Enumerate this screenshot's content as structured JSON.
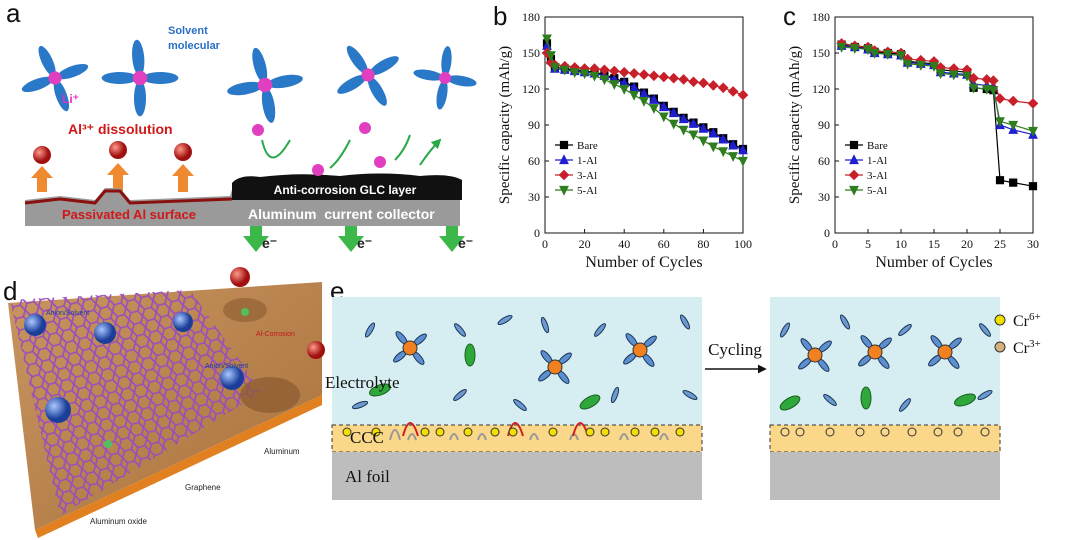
{
  "chart_data": [
    {
      "type": "line",
      "label": "b",
      "xlabel": "Number of Cycles",
      "ylabel": "Specific capacity (mAh/g)",
      "x": [
        1,
        3,
        5,
        10,
        15,
        20,
        25,
        30,
        35,
        40,
        45,
        50,
        55,
        60,
        65,
        70,
        75,
        80,
        85,
        90,
        95,
        100
      ],
      "xlim": [
        0,
        100
      ],
      "xticks": [
        0,
        20,
        40,
        60,
        80,
        100
      ],
      "ylim": [
        0,
        180
      ],
      "yticks": [
        0,
        30,
        60,
        90,
        120,
        150,
        180
      ],
      "legend": "lower left",
      "series": [
        {
          "name": "Bare",
          "color": "#000000",
          "marker": "square",
          "values": [
            158,
            145,
            138,
            137,
            136,
            135,
            134,
            132,
            129,
            126,
            122,
            117,
            112,
            106,
            101,
            96,
            92,
            88,
            84,
            79,
            74,
            70
          ]
        },
        {
          "name": "1-Al",
          "color": "#1f1fd0",
          "marker": "triangle-up",
          "values": [
            156,
            144,
            137,
            136,
            135,
            134,
            133,
            131,
            128,
            125,
            121,
            116,
            111,
            105,
            100,
            95,
            91,
            87,
            83,
            78,
            73,
            69
          ]
        },
        {
          "name": "3-Al",
          "color": "#c8202a",
          "marker": "diamond",
          "values": [
            150,
            142,
            140,
            139,
            138,
            137,
            137,
            136,
            135,
            134,
            133,
            132,
            131,
            130,
            129,
            128,
            126,
            125,
            123,
            121,
            118,
            115
          ]
        },
        {
          "name": "5-Al",
          "color": "#2e7d1e",
          "marker": "triangle-down",
          "values": [
            162,
            148,
            138,
            136,
            134,
            133,
            131,
            128,
            124,
            120,
            115,
            110,
            104,
            97,
            91,
            86,
            82,
            77,
            72,
            68,
            64,
            60
          ]
        }
      ]
    },
    {
      "type": "line",
      "label": "c",
      "xlabel": "Number of Cycles",
      "ylabel": "Specific capacity (mAh/g)",
      "x": [
        1,
        3,
        5,
        6,
        8,
        10,
        11,
        13,
        15,
        16,
        18,
        20,
        21,
        23,
        24,
        25,
        27,
        30
      ],
      "xlim": [
        0,
        30
      ],
      "xticks": [
        0,
        5,
        10,
        15,
        20,
        25,
        30
      ],
      "ylim": [
        0,
        180
      ],
      "yticks": [
        0,
        30,
        60,
        90,
        120,
        150,
        180
      ],
      "legend": "lower left",
      "series": [
        {
          "name": "Bare",
          "color": "#000000",
          "marker": "square",
          "values": [
            157,
            155,
            154,
            151,
            150,
            149,
            143,
            142,
            141,
            136,
            135,
            134,
            121,
            120,
            119,
            44,
            42,
            39
          ]
        },
        {
          "name": "1-Al",
          "color": "#1f1fd0",
          "marker": "triangle-up",
          "values": [
            156,
            155,
            153,
            150,
            149,
            148,
            142,
            141,
            140,
            134,
            133,
            132,
            124,
            123,
            122,
            90,
            86,
            82
          ]
        },
        {
          "name": "3-Al",
          "color": "#c8202a",
          "marker": "diamond",
          "values": [
            158,
            156,
            155,
            152,
            151,
            150,
            145,
            144,
            143,
            138,
            137,
            136,
            129,
            128,
            127,
            112,
            110,
            108
          ]
        },
        {
          "name": "5-Al",
          "color": "#2e7d1e",
          "marker": "triangle-down",
          "values": [
            155,
            154,
            153,
            150,
            149,
            148,
            141,
            140,
            139,
            133,
            132,
            131,
            121,
            120,
            119,
            93,
            90,
            85
          ]
        }
      ]
    }
  ],
  "panel_a": {
    "label": "a",
    "solvent": [
      "Solvent",
      "molecular"
    ],
    "li": "Li⁺",
    "al_dissolution": "Al³⁺ dissolution",
    "glc": "Anti-corrosion GLC layer",
    "passivated": "Passivated Al surface",
    "collector": "Aluminum  current collector",
    "electron": [
      "e⁻",
      "e⁻",
      "e⁻"
    ]
  },
  "panel_d": {
    "label": "d",
    "anion_1": "Anion/Solvent",
    "corrosion": "Al-Corrosion",
    "anion_2": "Anion/Solvent",
    "aluminum": "Aluminum",
    "graphene": "Graphene",
    "oxide": "Aluminum oxide"
  },
  "panel_e": {
    "label": "e",
    "electrolyte": "Electrolyte",
    "ccc": "CCC",
    "foil": "Al foil",
    "cycling": "Cycling",
    "legend": [
      {
        "base": "Cr",
        "sup": "6+"
      },
      {
        "base": "Cr",
        "sup": "3+"
      }
    ]
  }
}
